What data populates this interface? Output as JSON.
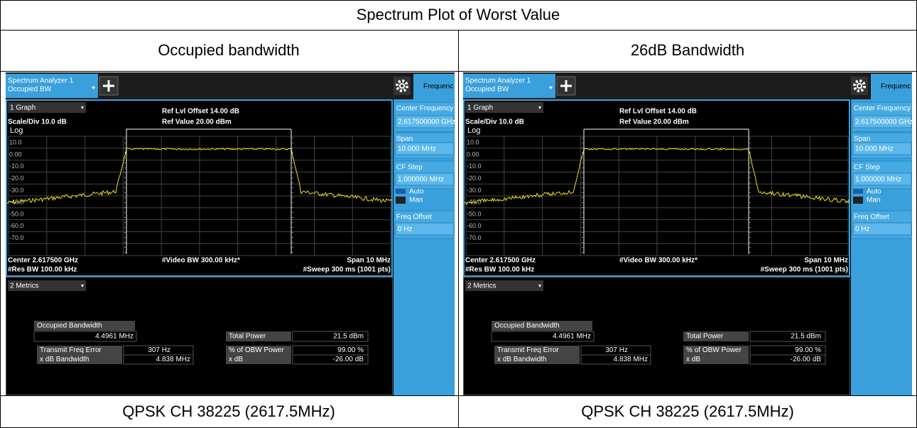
{
  "title": "Spectrum Plot of Worst Value",
  "columns": [
    {
      "header": "Occupied bandwidth",
      "footer": "QPSK CH 38225 (2617.5MHz)",
      "screen": {
        "tab_title": "Spectrum Analyzer 1",
        "tab_subtitle": "Occupied BW",
        "side_tab": "Frequenc",
        "graph_menu": "1 Graph",
        "scale": "Scale/Div 10.0 dB",
        "ref_offset": "Ref Lvl Offset 14.00 dB",
        "ref_value": "Ref Value 20.00 dBm",
        "log": "Log",
        "y_labels": [
          "10.0",
          "0.00",
          "-10.0",
          "-20.0",
          "-30.0",
          "-40.0",
          "-50.0",
          "-60.0",
          "-70.0"
        ],
        "center": "Center 2.617500 GHz",
        "video_bw": "#Video BW 300.00 kHz*",
        "span": "Span 10 MHz",
        "res_bw": "#Res BW 100.00 kHz",
        "sweep": "#Sweep 300 ms (1001 pts)",
        "metrics_menu": "2 Metrics",
        "occupied_bw": {
          "label": "Occupied Bandwidth",
          "value": "4.4961 MHz"
        },
        "left_rows": [
          {
            "label": "Transmit Freq Error",
            "value": "307 Hz"
          },
          {
            "label": "x dB Bandwidth",
            "value": "4.838 MHz"
          }
        ],
        "total_power": {
          "label": "Total Power",
          "value": "21.5 dBm"
        },
        "right_rows": [
          {
            "label": "% of OBW Power",
            "value": "99.00 %"
          },
          {
            "label": "x dB",
            "value": "-26.00 dB"
          }
        ],
        "side": {
          "center_freq": {
            "label": "Center Frequency",
            "value": "2.617500000 GHz"
          },
          "span": {
            "label": "Span",
            "value": "10.000 MHz"
          },
          "cf_step": {
            "label": "CF Step",
            "value": "1.000000 MHz",
            "auto": "Auto",
            "man": "Man"
          },
          "freq_offset": {
            "label": "Freq Offset",
            "value": "0 Hz"
          }
        }
      }
    },
    {
      "header": "26dB Bandwidth",
      "footer": "QPSK CH 38225 (2617.5MHz)",
      "screen": {
        "tab_title": "Spectrum Analyzer 1",
        "tab_subtitle": "Occupied BW",
        "side_tab": "Frequenc",
        "graph_menu": "1 Graph",
        "scale": "Scale/Div 10.0 dB",
        "ref_offset": "Ref Lvl Offset 14.00 dB",
        "ref_value": "Ref Value 20.00 dBm",
        "log": "Log",
        "y_labels": [
          "10.0",
          "0.00",
          "-10.0",
          "-20.0",
          "-30.0",
          "-40.0",
          "-50.0",
          "-60.0",
          "-70.0"
        ],
        "center": "Center 2.617500 GHz",
        "video_bw": "#Video BW 300.00 kHz*",
        "span": "Span 10 MHz",
        "res_bw": "#Res BW 100.00 kHz",
        "sweep": "#Sweep 300 ms (1001 pts)",
        "metrics_menu": "2 Metrics",
        "occupied_bw": {
          "label": "Occupied Bandwidth",
          "value": "4.4961 MHz"
        },
        "left_rows": [
          {
            "label": "Transmit Freq Error",
            "value": "307 Hz"
          },
          {
            "label": "x dB Bandwidth",
            "value": "4.838 MHz"
          }
        ],
        "total_power": {
          "label": "Total Power",
          "value": "21.5 dBm"
        },
        "right_rows": [
          {
            "label": "% of OBW Power",
            "value": "99.00 %"
          },
          {
            "label": "x dB",
            "value": "-26.00 dB"
          }
        ],
        "side": {
          "center_freq": {
            "label": "Center Frequency",
            "value": "2.617500000 GHz"
          },
          "span": {
            "label": "Span",
            "value": "10.000 MHz"
          },
          "cf_step": {
            "label": "CF Step",
            "value": "1.000000 MHz",
            "auto": "Auto",
            "man": "Man"
          },
          "freq_offset": {
            "label": "Freq Offset",
            "value": "0 Hz"
          }
        }
      }
    }
  ]
}
